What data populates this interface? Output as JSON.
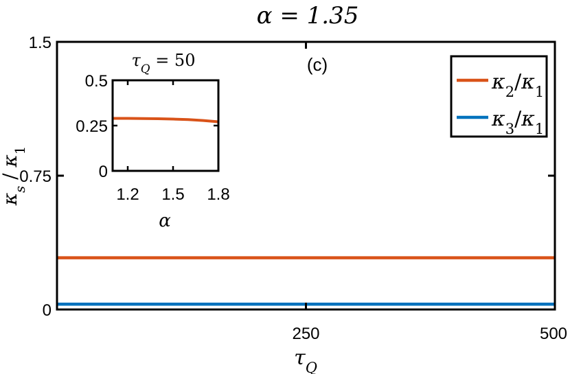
{
  "title": "α = 1.35",
  "panel_label": "(c)",
  "colors": {
    "series1": "#D95319",
    "series2": "#0072BD",
    "axis": "#000000",
    "background": "#ffffff"
  },
  "chart_data": [
    {
      "type": "line",
      "title": "α = 1.35",
      "xlabel": "τ_Q",
      "ylabel": "κ_s / κ_1",
      "xlim": [
        0,
        500
      ],
      "ylim": [
        0,
        1.5
      ],
      "xticks": [
        250,
        500
      ],
      "yticks": [
        0,
        0.75,
        1.5
      ],
      "xtick_labels": [
        "250",
        "500"
      ],
      "ytick_labels": [
        "0",
        "0.75",
        "1.5"
      ],
      "legend_position": "top-right",
      "x": [
        0,
        50,
        100,
        150,
        200,
        250,
        300,
        350,
        400,
        450,
        500
      ],
      "series": [
        {
          "name": "κ2/κ1",
          "values": [
            0.29,
            0.29,
            0.29,
            0.29,
            0.29,
            0.29,
            0.29,
            0.29,
            0.29,
            0.29,
            0.29
          ]
        },
        {
          "name": "κ3/κ1",
          "values": [
            0.03,
            0.03,
            0.03,
            0.03,
            0.03,
            0.03,
            0.03,
            0.03,
            0.03,
            0.03,
            0.03
          ]
        }
      ]
    },
    {
      "type": "line",
      "title": "τ_Q = 50",
      "xlabel": "α",
      "ylabel": "",
      "xlim": [
        1.1,
        1.8
      ],
      "ylim": [
        0,
        0.5
      ],
      "xticks": [
        1.2,
        1.5,
        1.8
      ],
      "yticks": [
        0,
        0.25,
        0.5
      ],
      "xtick_labels": [
        "1.2",
        "1.5",
        "1.8"
      ],
      "ytick_labels": [
        "0",
        "0.25",
        "0.5"
      ],
      "x": [
        1.1,
        1.2,
        1.3,
        1.4,
        1.5,
        1.6,
        1.7,
        1.8
      ],
      "series": [
        {
          "values": [
            0.29,
            0.29,
            0.289,
            0.288,
            0.286,
            0.283,
            0.278,
            0.271
          ]
        }
      ]
    }
  ]
}
